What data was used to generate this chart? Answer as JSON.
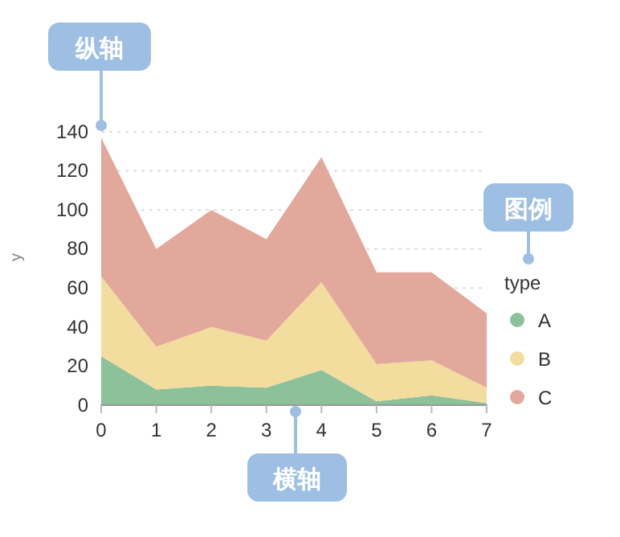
{
  "chart_data": {
    "type": "area",
    "stacked": true,
    "xlabel": null,
    "ylabel": "y",
    "legend_title": "type",
    "legend": "right",
    "grid": "y",
    "line_style": "dotted",
    "x": [
      0,
      1,
      2,
      3,
      4,
      5,
      6,
      7
    ],
    "xlim": [
      0,
      7
    ],
    "xticks": [
      0,
      1,
      2,
      3,
      4,
      5,
      6,
      7
    ],
    "ylim": [
      0,
      140
    ],
    "yticks": [
      0,
      20,
      40,
      60,
      80,
      100,
      120,
      140
    ],
    "series": [
      {
        "name": "A",
        "color": "#8cc19a",
        "values": [
          25,
          8,
          10,
          9,
          18,
          2,
          5,
          1
        ]
      },
      {
        "name": "B",
        "color": "#f2dc9e",
        "values": [
          41,
          22,
          30,
          24,
          45,
          19,
          18,
          8
        ]
      },
      {
        "name": "C",
        "color": "#e2a89b",
        "values": [
          71,
          50,
          60,
          52,
          64,
          47,
          45,
          38
        ]
      }
    ],
    "annotations": [
      "纵轴",
      "横轴",
      "图例"
    ]
  }
}
